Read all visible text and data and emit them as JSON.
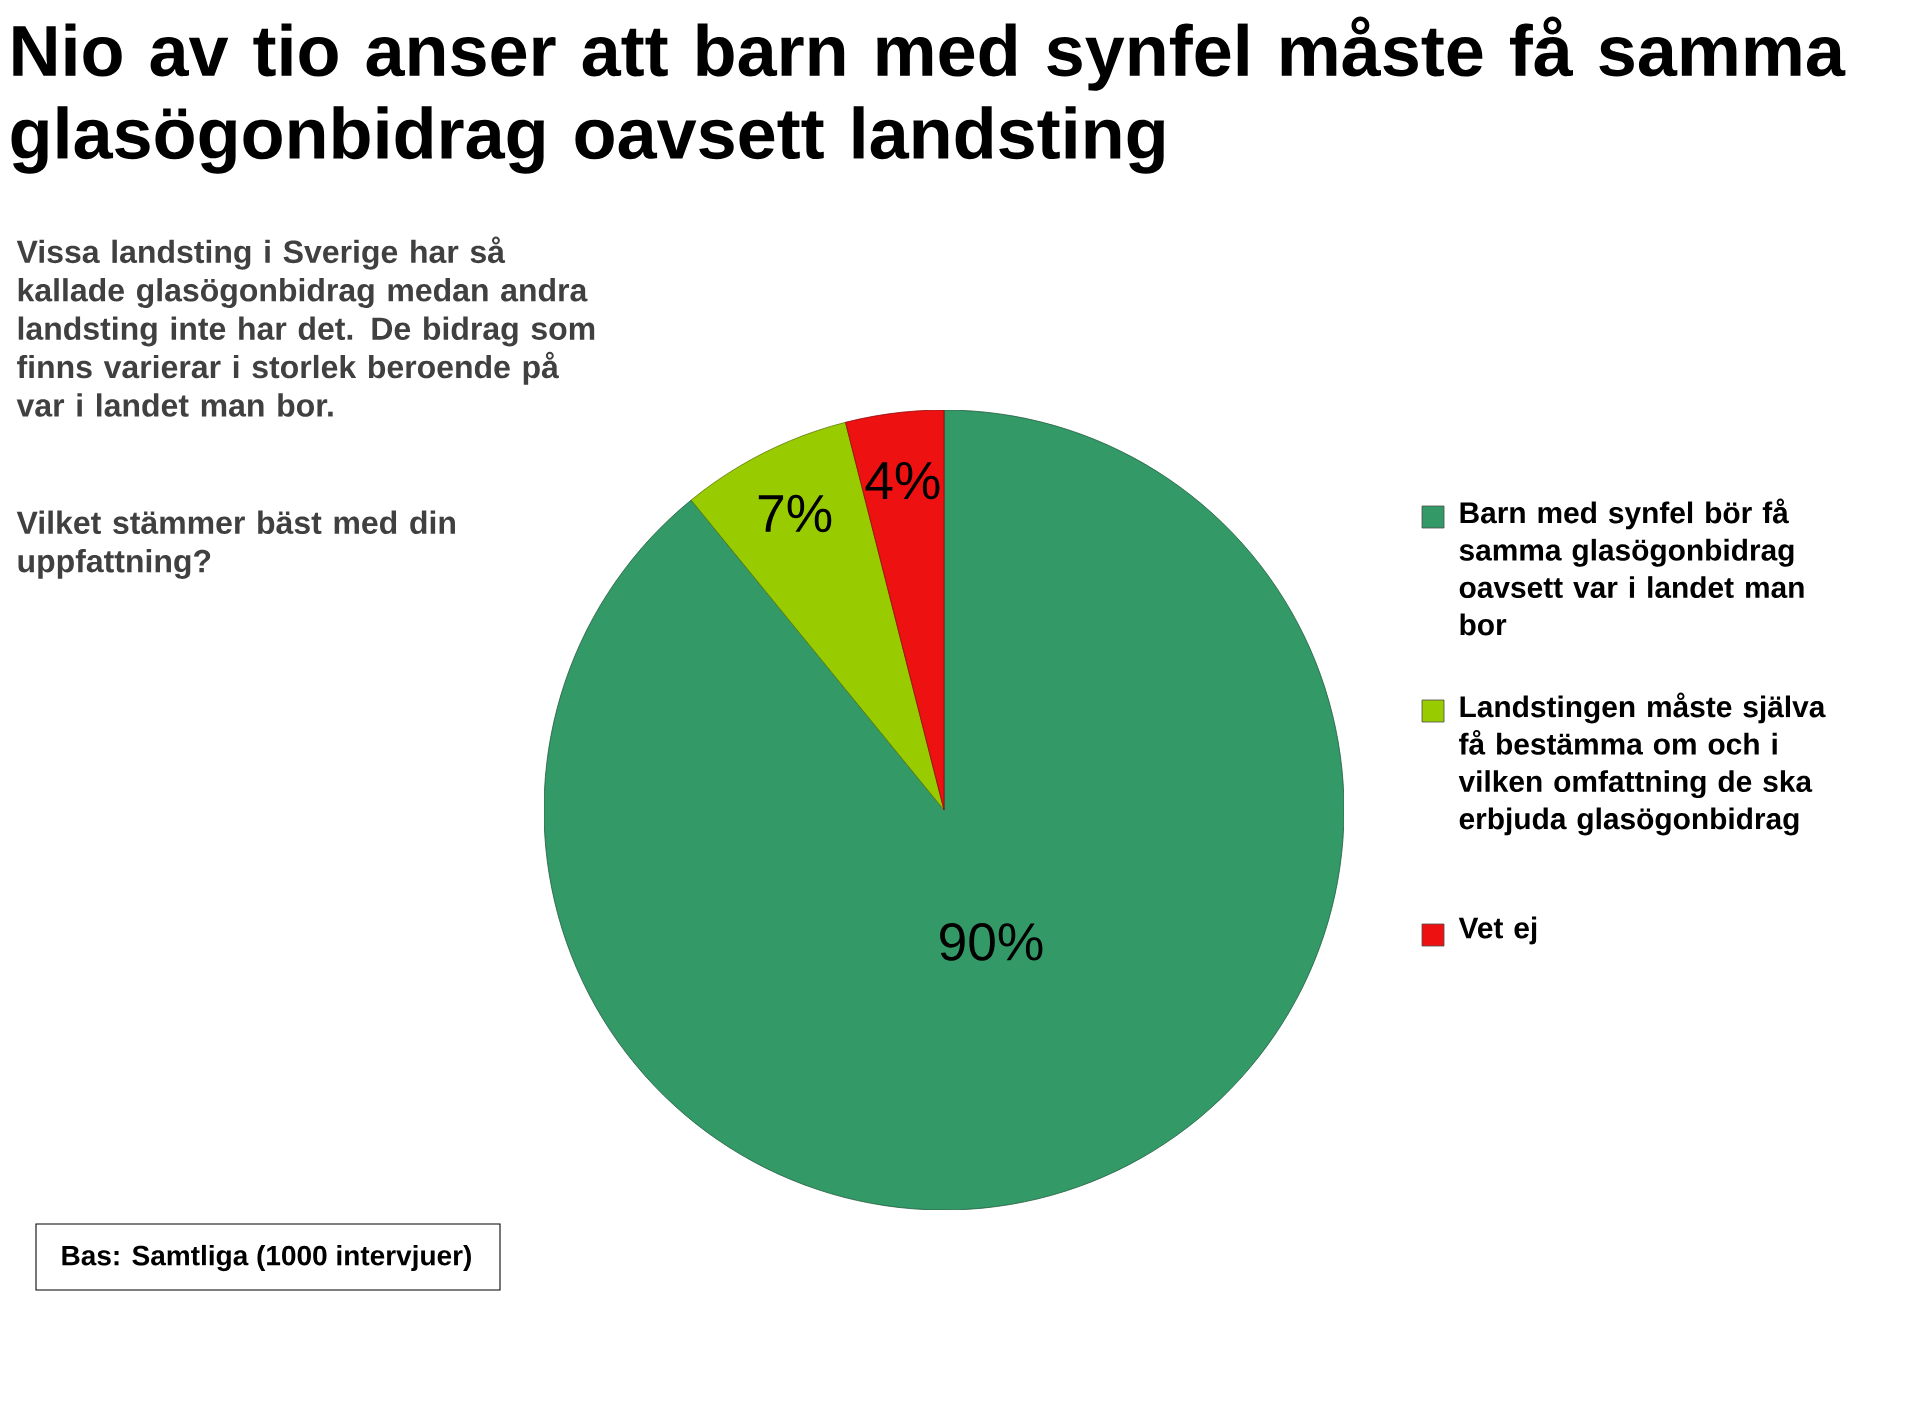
{
  "chart_data": {
    "type": "pie",
    "title": "Nio av tio anser att barn med synfel måste få samma glasögonbidrag oavsett landsting",
    "subtitle": "Vissa landsting i Sverige har så kallade glasögonbidrag medan andra landsting inte har det. De bidrag som finns varierar i storlek beroende på var i landet man bor.",
    "categories": [
      "Barn med synfel bör få samma glasögonbidrag oavsett var i landet man bor",
      "Landstingen måste själva få bestämma om och i vilken omfattning de ska erbjuda glasögonbidrag",
      "Vet ej"
    ],
    "values": [
      90,
      7,
      4
    ],
    "colors": [
      "#339966",
      "#99cc00",
      "#ee1111"
    ],
    "value_labels": [
      "90%",
      "7%",
      "4%"
    ],
    "legend": "right",
    "annotations": [
      "Vilket stämmer bäst med din uppfattning?",
      "Bas: Samtliga (1000 intervjuer)"
    ]
  }
}
